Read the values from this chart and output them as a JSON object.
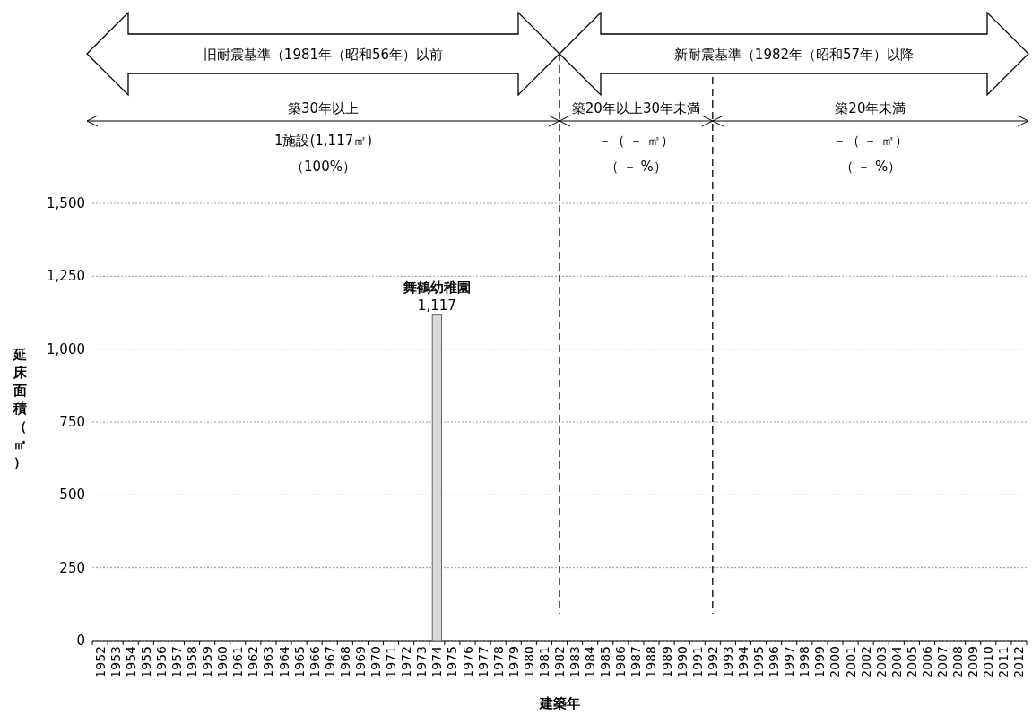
{
  "chart_data": {
    "type": "bar",
    "xlabel": "建築年",
    "ylabel": "延床面積（㎡）",
    "categories": [
      "1952",
      "1953",
      "1954",
      "1955",
      "1956",
      "1957",
      "1958",
      "1959",
      "1960",
      "1961",
      "1962",
      "1963",
      "1964",
      "1965",
      "1966",
      "1967",
      "1968",
      "1969",
      "1970",
      "1971",
      "1972",
      "1973",
      "1974",
      "1975",
      "1976",
      "1977",
      "1978",
      "1979",
      "1980",
      "1981",
      "1982",
      "1983",
      "1984",
      "1985",
      "1986",
      "1987",
      "1988",
      "1989",
      "1990",
      "1991",
      "1992",
      "1993",
      "1994",
      "1995",
      "1996",
      "1997",
      "1998",
      "1999",
      "2000",
      "2001",
      "2002",
      "2003",
      "2004",
      "2005",
      "2006",
      "2007",
      "2008",
      "2009",
      "2010",
      "2011",
      "2012"
    ],
    "values": [
      null,
      null,
      null,
      null,
      null,
      null,
      null,
      null,
      null,
      null,
      null,
      null,
      null,
      null,
      null,
      null,
      null,
      null,
      null,
      null,
      null,
      null,
      1117,
      null,
      null,
      null,
      null,
      null,
      null,
      null,
      null,
      null,
      null,
      null,
      null,
      null,
      null,
      null,
      null,
      null,
      null,
      null,
      null,
      null,
      null,
      null,
      null,
      null,
      null,
      null,
      null,
      null,
      null,
      null,
      null,
      null,
      null,
      null,
      null,
      null,
      null
    ],
    "value_labels": [
      null,
      null,
      null,
      null,
      null,
      null,
      null,
      null,
      null,
      null,
      null,
      null,
      null,
      null,
      null,
      null,
      null,
      null,
      null,
      null,
      null,
      null,
      "1,117",
      null,
      null,
      null,
      null,
      null,
      null,
      null,
      null,
      null,
      null,
      null,
      null,
      null,
      null,
      null,
      null,
      null,
      null,
      null,
      null,
      null,
      null,
      null,
      null,
      null,
      null,
      null,
      null,
      null,
      null,
      null,
      null,
      null,
      null,
      null,
      null,
      null,
      null
    ],
    "color": "#d9d9d9",
    "ylim": [
      0,
      1500
    ],
    "yticks": [
      0,
      250,
      500,
      750,
      {
        "value": 1000,
        "label": "1,000"
      },
      {
        "value": 1250,
        "label": "1,250"
      },
      {
        "value": 1500,
        "label": "1,500"
      }
    ],
    "grid": "y",
    "ref_lines": [
      {
        "axis": "x",
        "value": "1982",
        "line_style": "dashed",
        "color": "#000000"
      },
      {
        "axis": "x",
        "value": "1992",
        "line_style": "dashed",
        "color": "#000000"
      }
    ],
    "annotations": [
      "旧耐震基準（1981年（昭和56年）以前",
      "新耐震基準（1982年（昭和57年）以降",
      "築30年以上",
      "1施設(1,117㎡)",
      "（100%）",
      "築20年以上30年未満",
      "－（ － ㎡）",
      "（ － %）",
      "築20年未満",
      "－（ － ㎡）",
      "（ － %）",
      {
        "text": "舞鶴幼稚園",
        "x": "1974",
        "y": 1117
      }
    ]
  }
}
